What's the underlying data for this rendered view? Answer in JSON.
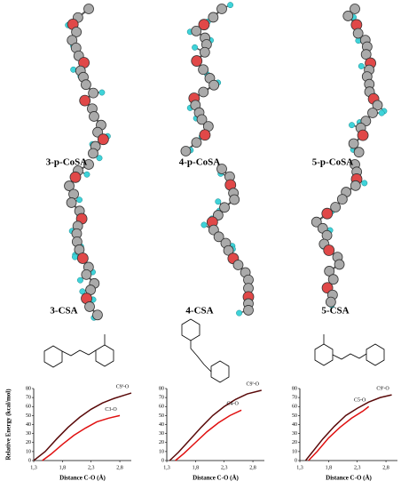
{
  "molecules": [
    {
      "label": "3-p-CoSA"
    },
    {
      "label": "4-p-CoSA"
    },
    {
      "label": "5-p-CoSA"
    },
    {
      "label": "3-CSA"
    },
    {
      "label": "4-CSA"
    },
    {
      "label": "5-CSA"
    }
  ],
  "chart_data": [
    {
      "type": "line",
      "ylabel": "Relative Energy (kcal/mol)",
      "xlabel": "Distance C-O (Å)",
      "xlim": [
        1.3,
        3.0
      ],
      "ylim": [
        0,
        80
      ],
      "xticks": [
        {
          "value": 1.3,
          "label": "1,3"
        },
        {
          "value": 1.8,
          "label": "1,8"
        },
        {
          "value": 2.3,
          "label": "2,3"
        },
        {
          "value": 2.8,
          "label": "2,8"
        }
      ],
      "yticks": [
        0,
        10,
        20,
        30,
        40,
        50,
        60,
        70,
        80
      ],
      "series": [
        {
          "name": "C9'-O",
          "color": "#5a0a0a",
          "x": [
            1.3,
            1.5,
            1.7,
            1.9,
            2.1,
            2.3,
            2.5,
            2.7,
            2.9,
            3.0
          ],
          "values": [
            0,
            10,
            24,
            37,
            48,
            57,
            64,
            69,
            73,
            75
          ]
        },
        {
          "name": "C3-O",
          "color": "#e01010",
          "x": [
            1.45,
            1.6,
            1.8,
            2.0,
            2.2,
            2.4,
            2.6,
            2.8
          ],
          "values": [
            0,
            7,
            18,
            28,
            36,
            43,
            47,
            50
          ]
        }
      ]
    },
    {
      "type": "line",
      "xlabel": "Distance C-O (Å)",
      "xlim": [
        1.3,
        3.0
      ],
      "ylim": [
        0,
        80
      ],
      "xticks": [
        {
          "value": 1.3,
          "label": "1,3"
        },
        {
          "value": 1.8,
          "label": "1,8"
        },
        {
          "value": 2.3,
          "label": "2,3"
        },
        {
          "value": 2.8,
          "label": "2,8"
        }
      ],
      "yticks": [
        0,
        10,
        20,
        30,
        40,
        50,
        60,
        70,
        80
      ],
      "series": [
        {
          "name": "C9'-O",
          "color": "#5a0a0a",
          "x": [
            1.35,
            1.5,
            1.7,
            1.9,
            2.1,
            2.3,
            2.5,
            2.7,
            2.95
          ],
          "values": [
            0,
            9,
            23,
            37,
            50,
            60,
            68,
            74,
            78
          ]
        },
        {
          "name": "C4-O",
          "color": "#e01010",
          "x": [
            1.45,
            1.6,
            1.8,
            2.0,
            2.2,
            2.4,
            2.6
          ],
          "values": [
            0,
            8,
            20,
            32,
            42,
            50,
            56
          ]
        }
      ]
    },
    {
      "type": "line",
      "xlabel": "Distance C-O (Å)",
      "xlim": [
        1.3,
        3.0
      ],
      "ylim": [
        0,
        80
      ],
      "xticks": [
        {
          "value": 1.3,
          "label": "1,3"
        },
        {
          "value": 1.8,
          "label": "1,8"
        },
        {
          "value": 2.3,
          "label": "2,3"
        },
        {
          "value": 2.8,
          "label": "2,8"
        }
      ],
      "yticks": [
        0,
        10,
        20,
        30,
        40,
        50,
        60,
        70,
        80
      ],
      "series": [
        {
          "name": "C9'-O",
          "color": "#5a0a0a",
          "x": [
            1.4,
            1.5,
            1.7,
            1.9,
            2.1,
            2.3,
            2.5,
            2.7,
            2.9
          ],
          "values": [
            0,
            8,
            24,
            38,
            50,
            58,
            65,
            70,
            73
          ]
        },
        {
          "name": "C5-O",
          "color": "#e01010",
          "x": [
            1.45,
            1.6,
            1.8,
            2.0,
            2.2,
            2.4,
            2.5
          ],
          "values": [
            0,
            10,
            25,
            37,
            47,
            55,
            60
          ]
        }
      ]
    }
  ]
}
